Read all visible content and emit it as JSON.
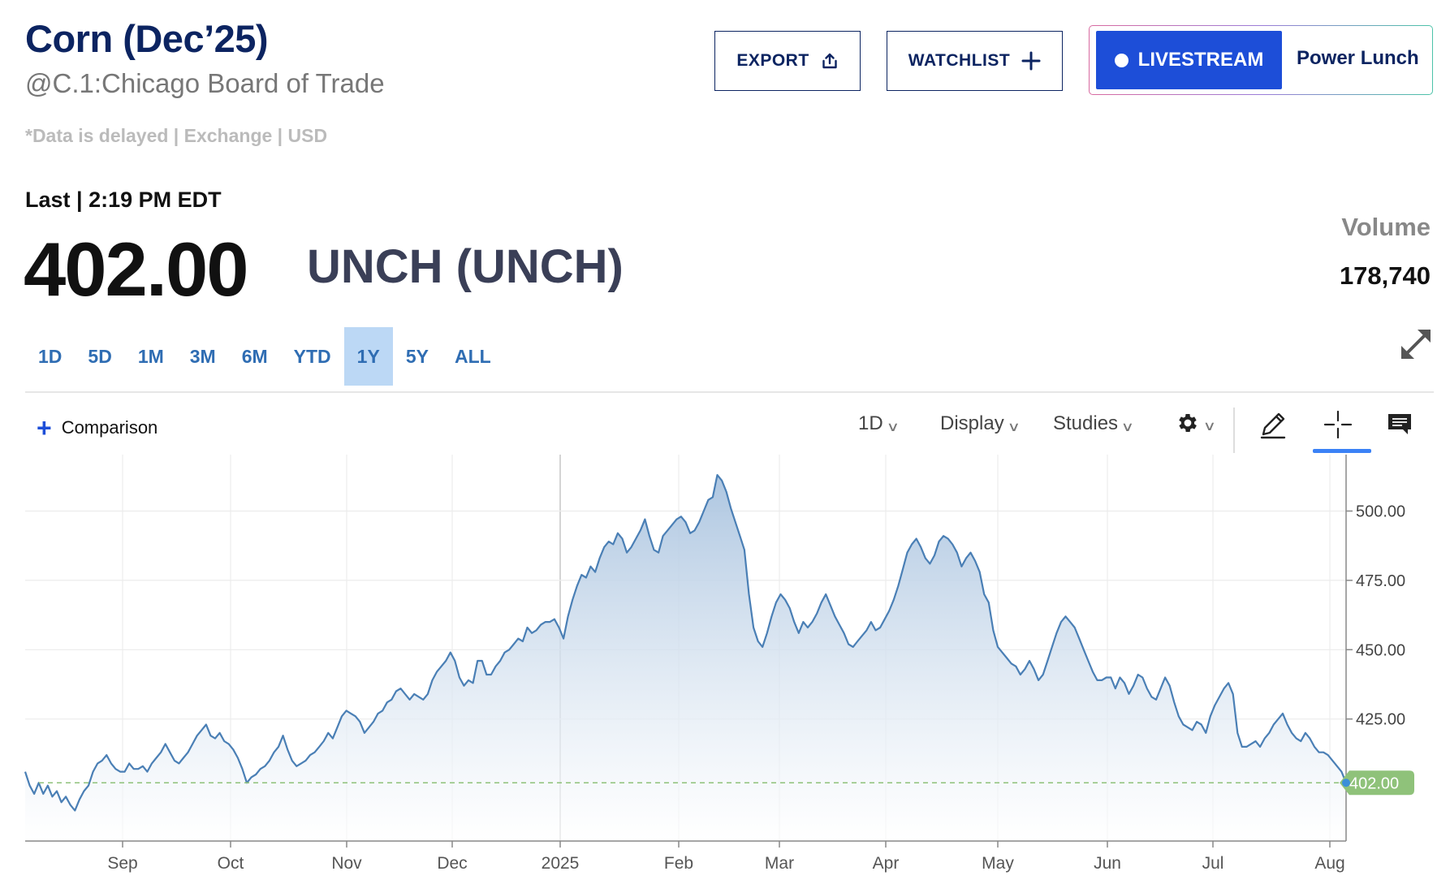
{
  "header": {
    "title": "Corn (Dec’25)",
    "exchange": "@C.1:Chicago Board of Trade",
    "delayed_note": "*Data is delayed | Exchange | USD",
    "export_label": "EXPORT",
    "watchlist_label": "WATCHLIST",
    "livestream_label": "LIVESTREAM",
    "show_name": "Power Lunch"
  },
  "quote": {
    "last_label": "Last | 2:19 PM EDT",
    "price": "402.00",
    "change": "UNCH (UNCH)",
    "volume_label": "Volume",
    "volume_value": "178,740"
  },
  "ranges": [
    {
      "label": "1D",
      "active": false
    },
    {
      "label": "5D",
      "active": false
    },
    {
      "label": "1M",
      "active": false
    },
    {
      "label": "3M",
      "active": false
    },
    {
      "label": "6M",
      "active": false
    },
    {
      "label": "YTD",
      "active": false
    },
    {
      "label": "1Y",
      "active": true
    },
    {
      "label": "5Y",
      "active": false
    },
    {
      "label": "ALL",
      "active": false
    }
  ],
  "toolbar": {
    "comparison_label": "Comparison",
    "period_label": "1D",
    "display_label": "Display",
    "studies_label": "Studies"
  },
  "icons": {
    "export": "share-upload-icon",
    "watchlist": "plus-icon",
    "expand": "expand-arrows-icon",
    "gear": "gear-icon",
    "draw": "pencil-icon",
    "crosshair": "crosshair-icon",
    "comment": "comment-icon"
  },
  "colors": {
    "brand_navy": "#0c2461",
    "live_blue": "#1d4ed8",
    "line": "#4a7fb5",
    "last_price_tag": "#8fc27a",
    "active_range": "#bcd8f5"
  },
  "chart_data": {
    "type": "area",
    "x_labels": [
      "Sep",
      "Oct",
      "Nov",
      "Dec",
      "2025",
      "Feb",
      "Mar",
      "Apr",
      "May",
      "Jun",
      "Jul",
      "Aug"
    ],
    "y_ticks": [
      "500.00",
      "475.00",
      "450.00",
      "425.00"
    ],
    "ylim": [
      381,
      518
    ],
    "last_value": 402.0,
    "last_value_label": "402.00",
    "series": [
      {
        "values": [
          406,
          401,
          398,
          402,
          398,
          401,
          397,
          399,
          395,
          397,
          394,
          392,
          396,
          399,
          401,
          406,
          409,
          410,
          412,
          409,
          407,
          406,
          406,
          409,
          407,
          407,
          408,
          406,
          409,
          411,
          413,
          416,
          413,
          410,
          409,
          411,
          413,
          416,
          419,
          421,
          423,
          419,
          418,
          420,
          417,
          416,
          414,
          411,
          407,
          402,
          404,
          405,
          407,
          408,
          410,
          413,
          415,
          419,
          414,
          410,
          408,
          409,
          410,
          412,
          413,
          415,
          417,
          420,
          418,
          422,
          426,
          428,
          427,
          426,
          424,
          420,
          422,
          424,
          427,
          428,
          431,
          432,
          435,
          436,
          434,
          432,
          434,
          433,
          432,
          434,
          439,
          442,
          444,
          446,
          449,
          446,
          440,
          437,
          439,
          438,
          446,
          446,
          441,
          441,
          444,
          446,
          449,
          450,
          452,
          454,
          453,
          458,
          456,
          457,
          459,
          460,
          460,
          461,
          458,
          454,
          462,
          468,
          473,
          477,
          476,
          480,
          478,
          483,
          487,
          489,
          488,
          492,
          490,
          485,
          487,
          490,
          493,
          497,
          491,
          486,
          485,
          491,
          493,
          495,
          497,
          498,
          496,
          492,
          493,
          496,
          500,
          504,
          505,
          513,
          511,
          507,
          501,
          496,
          491,
          486,
          470,
          458,
          453,
          451,
          456,
          462,
          467,
          470,
          468,
          465,
          460,
          456,
          460,
          458,
          460,
          463,
          467,
          470,
          466,
          462,
          459,
          456,
          452,
          451,
          453,
          455,
          457,
          460,
          457,
          458,
          461,
          464,
          468,
          473,
          479,
          485,
          488,
          490,
          487,
          483,
          481,
          484,
          489,
          491,
          490,
          488,
          485,
          480,
          483,
          485,
          482,
          478,
          470,
          467,
          457,
          451,
          449,
          447,
          445,
          444,
          441,
          443,
          446,
          443,
          439,
          441,
          446,
          451,
          456,
          460,
          462,
          460,
          458,
          454,
          450,
          446,
          442,
          439,
          439,
          440,
          440,
          436,
          440,
          438,
          434,
          437,
          441,
          440,
          436,
          433,
          432,
          436,
          440,
          437,
          431,
          426,
          423,
          422,
          421,
          424,
          423,
          420,
          426,
          430,
          433,
          436,
          438,
          434,
          420,
          415,
          415,
          416,
          417,
          415,
          418,
          420,
          423,
          425,
          427,
          423,
          420,
          418,
          417,
          420,
          418,
          415,
          413,
          413,
          412,
          410,
          408,
          406,
          402
        ]
      }
    ]
  }
}
